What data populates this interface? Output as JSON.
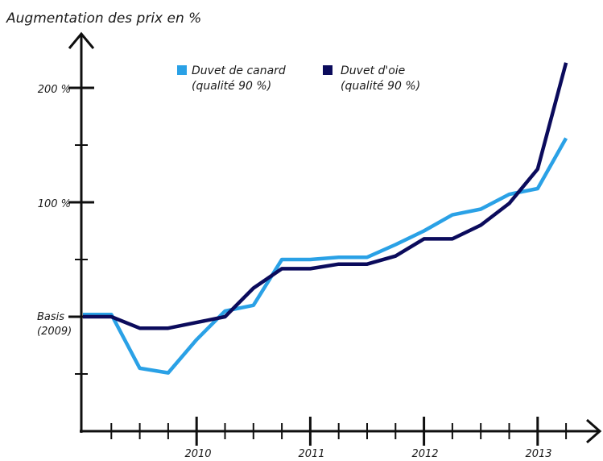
{
  "chart_data": {
    "type": "line",
    "title": "",
    "ylabel": "Augmentation des prix en %",
    "xlabel": "",
    "x_tick_labels": [
      "2010",
      "2011",
      "2012",
      "2013"
    ],
    "y_tick_labels": [
      {
        "value": 0,
        "label_line1": "Basis",
        "label_line2": "(2009)"
      },
      {
        "value": 100,
        "label_line1": "100 %",
        "label_line2": ""
      },
      {
        "value": 200,
        "label_line1": "200 %",
        "label_line2": ""
      }
    ],
    "ylim": [
      -100,
      240
    ],
    "xlim": [
      2009.0,
      2013.45
    ],
    "grid": false,
    "legend_position": "top",
    "series": [
      {
        "name_line1": "Duvet de canard",
        "name_line2": "(qualité 90 %)",
        "color": "#2aa1e6",
        "x": [
          2009.0,
          2009.25,
          2009.5,
          2009.75,
          2010.0,
          2010.25,
          2010.5,
          2010.75,
          2011.0,
          2011.25,
          2011.5,
          2011.75,
          2012.0,
          2012.25,
          2012.5,
          2012.75,
          2013.0,
          2013.25
        ],
        "values": [
          2,
          2,
          -45,
          -49,
          -20,
          5,
          10,
          50,
          50,
          52,
          52,
          63,
          75,
          89,
          94,
          107,
          112,
          156
        ]
      },
      {
        "name_line1": "Duvet d'oie",
        "name_line2": "(qualité 90 %)",
        "color": "#0b0b5c",
        "x": [
          2009.0,
          2009.25,
          2009.5,
          2009.75,
          2010.0,
          2010.25,
          2010.5,
          2010.75,
          2011.0,
          2011.25,
          2011.5,
          2011.75,
          2012.0,
          2012.25,
          2012.5,
          2012.75,
          2013.0,
          2013.25
        ],
        "values": [
          0,
          0,
          -10,
          -10,
          -5,
          0,
          25,
          42,
          42,
          46,
          46,
          53,
          68,
          68,
          80,
          99,
          129,
          222
        ]
      }
    ]
  }
}
